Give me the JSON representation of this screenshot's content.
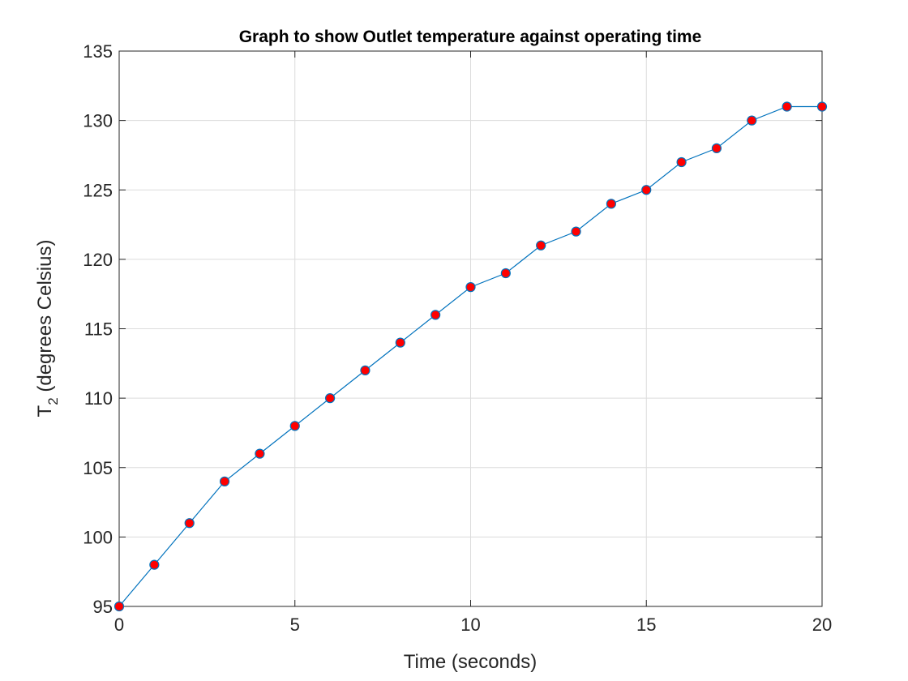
{
  "chart_data": {
    "type": "line",
    "title": "Graph to show Outlet temperature against operating time",
    "xlabel": "Time (seconds)",
    "ylabel_main": "T",
    "ylabel_sub": "2",
    "ylabel_rest": " (degrees Celsius)",
    "xlim": [
      0,
      20
    ],
    "ylim": [
      95,
      135
    ],
    "xticks": [
      0,
      5,
      10,
      15,
      20
    ],
    "yticks": [
      95,
      100,
      105,
      110,
      115,
      120,
      125,
      130,
      135
    ],
    "grid": true,
    "x": [
      0,
      1,
      2,
      3,
      4,
      5,
      6,
      7,
      8,
      9,
      10,
      11,
      12,
      13,
      14,
      15,
      16,
      17,
      18,
      19,
      20
    ],
    "series": [
      {
        "values": [
          95,
          98,
          101,
          104,
          106,
          108,
          110,
          112,
          114,
          116,
          118,
          119,
          121,
          122,
          124,
          125,
          127,
          128,
          130,
          131,
          131
        ],
        "line_color": "#0072bd",
        "marker_fill": "#ff0000",
        "marker_edge": "#0072bd"
      }
    ]
  }
}
